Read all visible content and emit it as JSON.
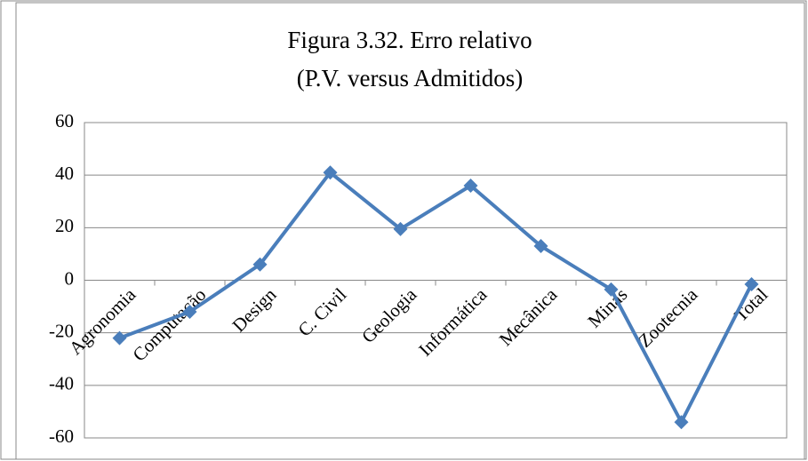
{
  "chart_data": {
    "type": "line",
    "title": [
      "Figura 3.32. Erro relativo",
      "(P.V. versus Admitidos)"
    ],
    "categories": [
      "Agronomia",
      "Computação",
      "Design",
      "C. Civil",
      "Geologia",
      "Informática",
      "Mecânica",
      "Minas",
      "Zootecnia",
      "Total"
    ],
    "series": [
      {
        "name": "Erro relativo",
        "color": "#4a7ebb",
        "values": [
          -22,
          -12,
          6,
          41,
          19.5,
          36,
          13,
          -3.5,
          -54,
          -1.5
        ]
      }
    ],
    "ylim": [
      -60,
      60
    ],
    "yticks": [
      -60,
      -40,
      -20,
      0,
      20,
      40,
      60
    ],
    "grid": true
  }
}
